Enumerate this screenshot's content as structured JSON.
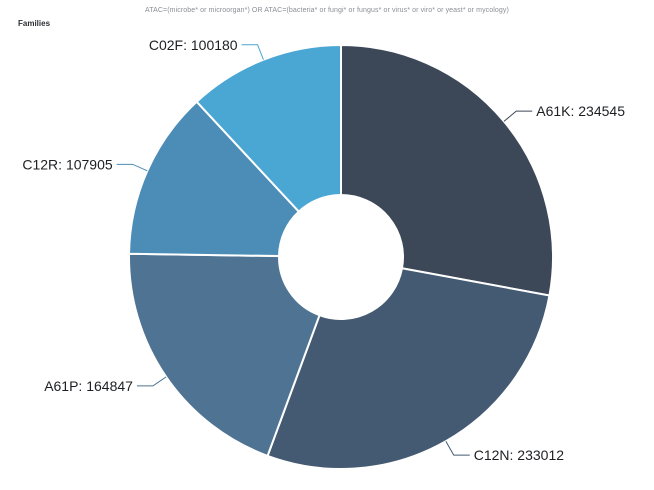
{
  "chart_data": {
    "type": "pie",
    "subtitle": "ATAC=(microbe* or microorgan*) OR ATAC=(bacteria* or fungi* or fungus* or virus* or viro* or yeast* or mycology)",
    "title": "Families",
    "series": [
      {
        "categories": [
          "A61K",
          "C12N",
          "A61P",
          "C12R",
          "C02F"
        ],
        "values": [
          234545,
          233012,
          164847,
          107905,
          100180
        ],
        "colors": [
          "#3c4858",
          "#445a72",
          "#4e7393",
          "#4b8db7",
          "#4aa7d3"
        ]
      }
    ],
    "donut": true,
    "legend": "none",
    "label_format": "category: value"
  }
}
